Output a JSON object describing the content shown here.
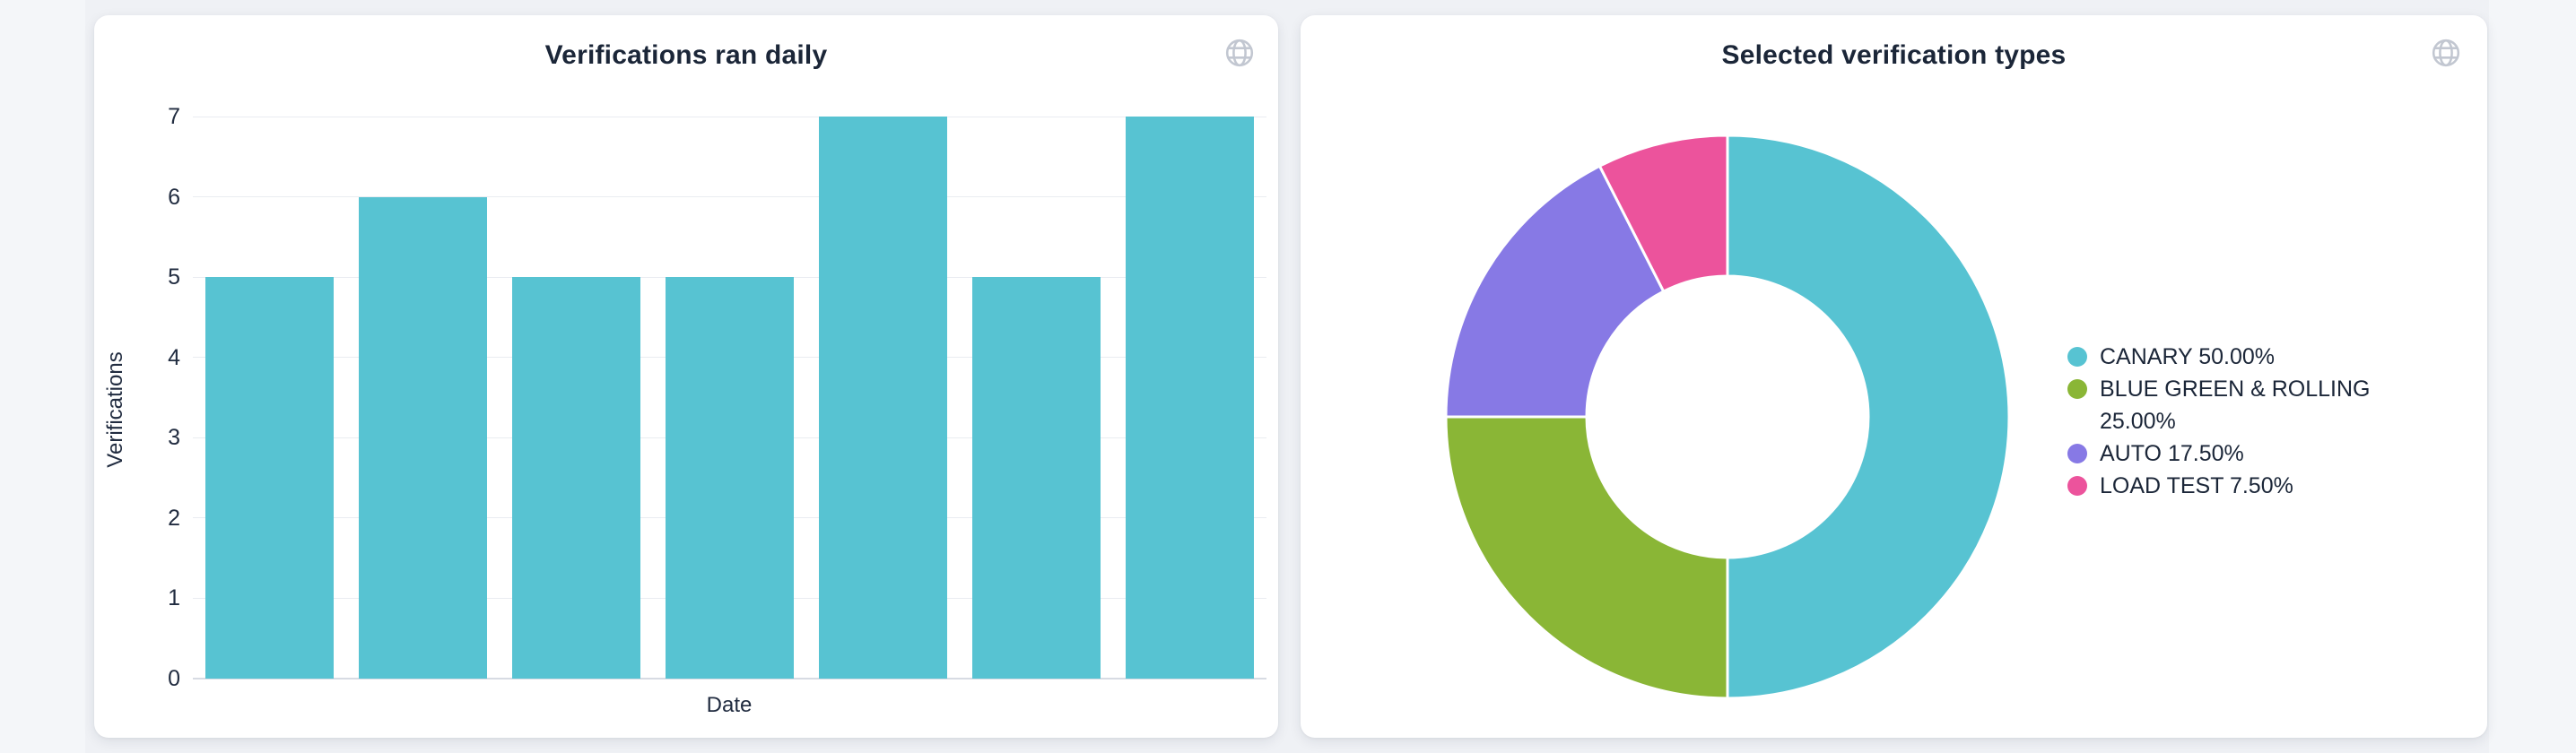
{
  "ui": {
    "background_color": "#eff1f5",
    "card_color": "#ffffff",
    "text_color": "#1b2638",
    "icon_color": "#c2c7d1",
    "gridline_color": "#eaecf1",
    "axis_line_color": "#d7dbe3"
  },
  "cards": [
    {
      "toolbar_icon": "globe-icon"
    },
    {
      "toolbar_icon": "globe-icon"
    }
  ],
  "chart_data": [
    {
      "type": "bar",
      "title": "Verifications ran daily",
      "xlabel": "Date",
      "ylabel": "Verifications",
      "values": [
        5,
        6,
        5,
        5,
        7,
        5,
        7
      ],
      "ylim": [
        0,
        7
      ],
      "yticks": [
        0,
        1,
        2,
        3,
        4,
        5,
        6,
        7
      ],
      "grid": true,
      "x_tick_labels_visible": false,
      "bar_color": "#57c3d2",
      "legend_position": "none"
    },
    {
      "type": "pie",
      "subtype": "donut",
      "title": "Selected verification types",
      "legend_position": "right",
      "start_angle_deg": 0,
      "direction": "clockwise",
      "inner_radius_ratio": 0.5,
      "slices": [
        {
          "label": "CANARY",
          "value_pct": 50.0,
          "legend_text": "CANARY 50.00%",
          "color": "#57c3d2"
        },
        {
          "label": "BLUE GREEN & ROLLING",
          "value_pct": 25.0,
          "legend_text": "BLUE GREEN & ROLLING 25.00%",
          "color": "#8ab636"
        },
        {
          "label": "AUTO",
          "value_pct": 17.5,
          "legend_text": "AUTO 17.50%",
          "color": "#8779e5"
        },
        {
          "label": "LOAD TEST",
          "value_pct": 7.5,
          "legend_text": "LOAD TEST 7.50%",
          "color": "#ec539c"
        }
      ]
    }
  ]
}
